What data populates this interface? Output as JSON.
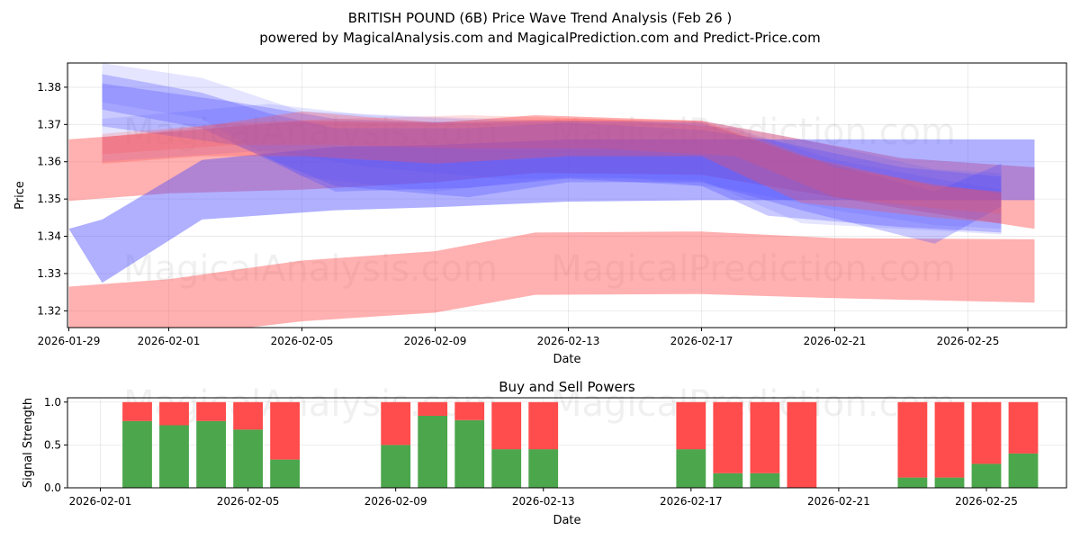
{
  "chart_data": [
    {
      "type": "area",
      "title": "BRITISH POUND (6B) Price Wave Trend Analysis (Feb 26 )",
      "subtitle": "powered by MagicalAnalysis.com and MagicalPrediction.com and Predict-Price.com",
      "xlabel": "Date",
      "ylabel": "Price",
      "xlim": [
        "2026-01-29",
        "2026-02-27"
      ],
      "ylim": [
        1.3155,
        1.3865
      ],
      "x_ticks": [
        "2026-01-29",
        "2026-02-01",
        "2026-02-05",
        "2026-02-09",
        "2026-02-13",
        "2026-02-17",
        "2026-02-21",
        "2026-02-25"
      ],
      "y_ticks": [
        1.32,
        1.33,
        1.34,
        1.35,
        1.36,
        1.37,
        1.38
      ],
      "y_tick_labels": [
        "1.32",
        "1.33",
        "1.34",
        "1.35",
        "1.36",
        "1.37",
        "1.38"
      ],
      "watermarks": [
        "MagicalAnalysis.com",
        "MagicalPrediction.com"
      ],
      "grid": true,
      "colors": {
        "bullish": "#ff5050",
        "bearish": "#5050ff"
      },
      "bands": [
        {
          "name": "red-lower-band",
          "color": "#ff5050",
          "opacity": 0.45,
          "x": [
            "2026-01-29",
            "2026-02-01",
            "2026-02-05",
            "2026-02-09",
            "2026-02-12",
            "2026-02-17",
            "2026-02-21",
            "2026-02-27"
          ],
          "upper": [
            1.3265,
            1.3285,
            1.3335,
            1.336,
            1.341,
            1.3413,
            1.3395,
            1.3392
          ],
          "lower": [
            1.313,
            1.313,
            1.3172,
            1.3195,
            1.3243,
            1.3245,
            1.3234,
            1.3222
          ]
        },
        {
          "name": "red-wide-band",
          "color": "#ff5050",
          "opacity": 0.45,
          "x": [
            "2026-01-29",
            "2026-02-01",
            "2026-02-05",
            "2026-02-09",
            "2026-02-12",
            "2026-02-17",
            "2026-02-20",
            "2026-02-23",
            "2026-02-27"
          ],
          "upper": [
            1.366,
            1.368,
            1.371,
            1.3705,
            1.3725,
            1.371,
            1.366,
            1.361,
            1.3585
          ],
          "lower": [
            1.3495,
            1.3515,
            1.3525,
            1.3545,
            1.357,
            1.3565,
            1.352,
            1.3475,
            1.342
          ]
        },
        {
          "name": "blue-wide-band",
          "color": "#5050ff",
          "opacity": 0.45,
          "x": [
            "2026-01-29",
            "2026-01-30",
            "2026-02-02",
            "2026-02-06",
            "2026-02-09",
            "2026-02-13",
            "2026-02-17",
            "2026-02-20",
            "2026-02-23",
            "2026-02-27"
          ],
          "upper": [
            1.342,
            1.3445,
            1.3605,
            1.364,
            1.3645,
            1.366,
            1.366,
            1.366,
            1.366,
            1.366
          ],
          "lower": [
            1.342,
            1.3275,
            1.3445,
            1.347,
            1.3478,
            1.3493,
            1.3497,
            1.3497,
            1.3497,
            1.3497
          ]
        },
        {
          "name": "blue-upper-band",
          "color": "#5050ff",
          "opacity": 0.3,
          "x": [
            "2026-01-30",
            "2026-02-02",
            "2026-02-04",
            "2026-02-06",
            "2026-02-10",
            "2026-02-13",
            "2026-02-17",
            "2026-02-19",
            "2026-02-23",
            "2026-02-26"
          ],
          "upper": [
            1.3835,
            1.3785,
            1.373,
            1.369,
            1.369,
            1.3705,
            1.3685,
            1.366,
            1.3585,
            1.356
          ],
          "lower": [
            1.374,
            1.369,
            1.3605,
            1.352,
            1.353,
            1.3555,
            1.3535,
            1.3455,
            1.3425,
            1.341
          ]
        },
        {
          "name": "blue-mid-band",
          "color": "#5050ff",
          "opacity": 0.3,
          "x": [
            "2026-01-30",
            "2026-02-03",
            "2026-02-06",
            "2026-02-10",
            "2026-02-13",
            "2026-02-17",
            "2026-02-20",
            "2026-02-24",
            "2026-02-26"
          ],
          "upper": [
            1.381,
            1.376,
            1.3715,
            1.3705,
            1.371,
            1.3705,
            1.3615,
            1.352,
            1.3595
          ],
          "lower": [
            1.3695,
            1.3645,
            1.3535,
            1.3505,
            1.3545,
            1.3545,
            1.347,
            1.338,
            1.348
          ]
        },
        {
          "name": "blue-ghost-band-1",
          "color": "#5050ff",
          "opacity": 0.15,
          "x": [
            "2026-01-30",
            "2026-02-02",
            "2026-02-05",
            "2026-02-09",
            "2026-02-13",
            "2026-02-17",
            "2026-02-20",
            "2026-02-24",
            "2026-02-26"
          ],
          "upper": [
            1.3865,
            1.3825,
            1.3735,
            1.372,
            1.371,
            1.371,
            1.366,
            1.358,
            1.357
          ],
          "lower": [
            1.376,
            1.3715,
            1.356,
            1.352,
            1.356,
            1.355,
            1.3435,
            1.3415,
            1.3405
          ]
        },
        {
          "name": "blue-ghost-band-2",
          "color": "#5050ff",
          "opacity": 0.15,
          "x": [
            "2026-01-30",
            "2026-02-04",
            "2026-02-07",
            "2026-02-11",
            "2026-02-15",
            "2026-02-18",
            "2026-02-21",
            "2026-02-24",
            "2026-02-26"
          ],
          "upper": [
            1.3715,
            1.3755,
            1.3725,
            1.371,
            1.371,
            1.369,
            1.3605,
            1.3555,
            1.3525
          ],
          "lower": [
            1.36,
            1.363,
            1.3585,
            1.3555,
            1.3555,
            1.3525,
            1.347,
            1.343,
            1.342
          ]
        },
        {
          "name": "red-mid-band",
          "color": "#ff5050",
          "opacity": 0.3,
          "x": [
            "2026-01-30",
            "2026-02-02",
            "2026-02-05",
            "2026-02-09",
            "2026-02-13",
            "2026-02-17",
            "2026-02-20",
            "2026-02-24",
            "2026-02-26"
          ],
          "upper": [
            1.3665,
            1.3695,
            1.3735,
            1.3705,
            1.3715,
            1.371,
            1.3615,
            1.3535,
            1.352
          ],
          "lower": [
            1.3595,
            1.3615,
            1.3615,
            1.3595,
            1.3615,
            1.3615,
            1.349,
            1.345,
            1.3435
          ]
        },
        {
          "name": "red-ghost-band",
          "color": "#ff5050",
          "opacity": 0.2,
          "x": [
            "2026-01-30",
            "2026-02-03",
            "2026-02-06",
            "2026-02-10",
            "2026-02-14",
            "2026-02-18",
            "2026-02-21",
            "2026-02-24",
            "2026-02-26"
          ],
          "upper": [
            1.3675,
            1.3705,
            1.3715,
            1.3725,
            1.3715,
            1.369,
            1.3585,
            1.354,
            1.3515
          ],
          "lower": [
            1.362,
            1.3645,
            1.3645,
            1.3635,
            1.3635,
            1.3615,
            1.3505,
            1.3475,
            1.346
          ]
        }
      ]
    },
    {
      "type": "bar",
      "title": "Buy and Sell Powers",
      "xlabel": "Date",
      "ylabel": "Signal Strength",
      "xlim": [
        "2026-01-31",
        "2026-02-27"
      ],
      "ylim": [
        0,
        1.05
      ],
      "x_ticks": [
        "2026-02-01",
        "2026-02-05",
        "2026-02-09",
        "2026-02-13",
        "2026-02-17",
        "2026-02-21",
        "2026-02-25"
      ],
      "y_ticks": [
        0,
        0.5,
        1
      ],
      "y_tick_labels": [
        "0.0",
        "0.5",
        "1.0"
      ],
      "grid": true,
      "colors": {
        "buy": "#4ca64c",
        "sell": "#ff4c4c"
      },
      "series": [
        {
          "name": "Buy",
          "color": "#4ca64c",
          "x": [
            "2026-02-02",
            "2026-02-03",
            "2026-02-04",
            "2026-02-05",
            "2026-02-06",
            "2026-02-09",
            "2026-02-10",
            "2026-02-11",
            "2026-02-12",
            "2026-02-13",
            "2026-02-17",
            "2026-02-18",
            "2026-02-19",
            "2026-02-20",
            "2026-02-23",
            "2026-02-24",
            "2026-02-25",
            "2026-02-26"
          ],
          "values": [
            0.78,
            0.73,
            0.78,
            0.68,
            0.33,
            0.5,
            0.84,
            0.79,
            0.45,
            0.45,
            0.45,
            0.17,
            0.17,
            0.0,
            0.12,
            0.12,
            0.28,
            0.4
          ]
        },
        {
          "name": "Sell",
          "color": "#ff4c4c",
          "x": [
            "2026-02-02",
            "2026-02-03",
            "2026-02-04",
            "2026-02-05",
            "2026-02-06",
            "2026-02-09",
            "2026-02-10",
            "2026-02-11",
            "2026-02-12",
            "2026-02-13",
            "2026-02-17",
            "2026-02-18",
            "2026-02-19",
            "2026-02-20",
            "2026-02-23",
            "2026-02-24",
            "2026-02-25",
            "2026-02-26"
          ],
          "values": [
            0.22,
            0.27,
            0.22,
            0.32,
            0.67,
            0.5,
            0.16,
            0.21,
            0.55,
            0.55,
            0.55,
            0.83,
            0.83,
            1.0,
            0.88,
            0.88,
            0.72,
            0.6
          ]
        }
      ]
    }
  ]
}
